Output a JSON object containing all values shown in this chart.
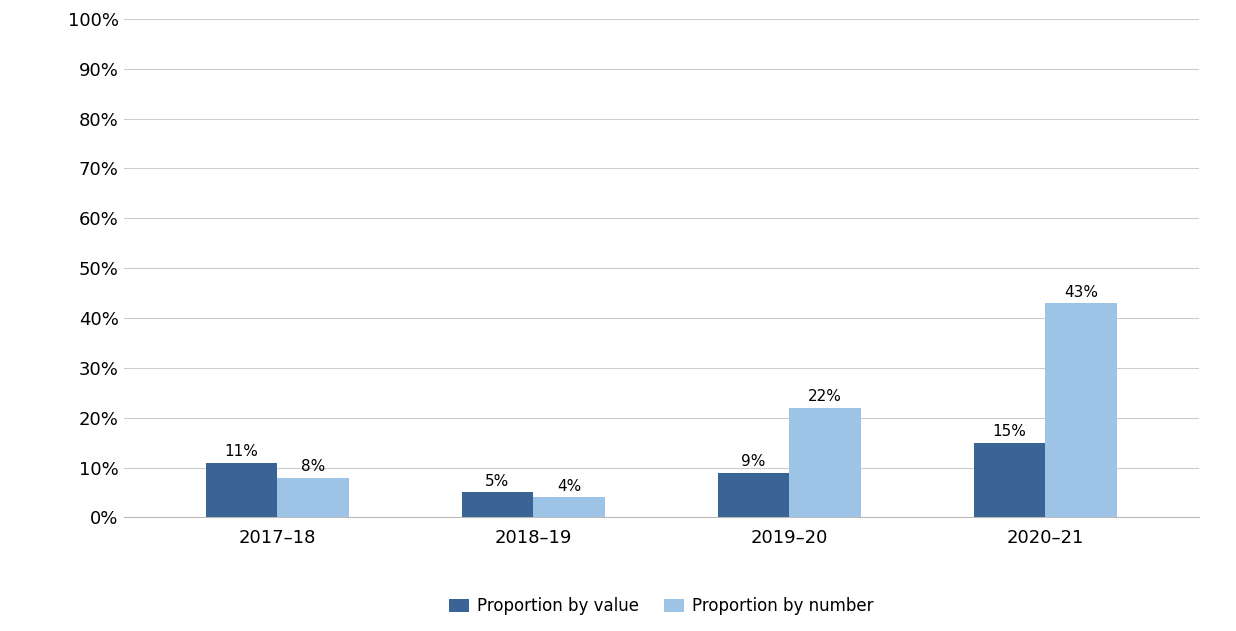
{
  "categories": [
    "2017–18",
    "2018–19",
    "2019–20",
    "2020–21"
  ],
  "proportion_by_value": [
    0.11,
    0.05,
    0.09,
    0.15
  ],
  "proportion_by_number": [
    0.08,
    0.04,
    0.22,
    0.43
  ],
  "labels_value": [
    "11%",
    "5%",
    "9%",
    "15%"
  ],
  "labels_number": [
    "8%",
    "4%",
    "22%",
    "43%"
  ],
  "color_value": "#3A6496",
  "color_number": "#9DC3E6",
  "legend_labels": [
    "Proportion by value",
    "Proportion by number"
  ],
  "ylim": [
    0,
    1.0
  ],
  "yticks": [
    0.0,
    0.1,
    0.2,
    0.3,
    0.4,
    0.5,
    0.6,
    0.7,
    0.8,
    0.9,
    1.0
  ],
  "ytick_labels": [
    "0%",
    "10%",
    "20%",
    "30%",
    "40%",
    "50%",
    "60%",
    "70%",
    "80%",
    "90%",
    "100%"
  ],
  "background_color": "#FFFFFF",
  "bar_width": 0.28,
  "label_fontsize": 11,
  "tick_fontsize": 13,
  "legend_fontsize": 12
}
